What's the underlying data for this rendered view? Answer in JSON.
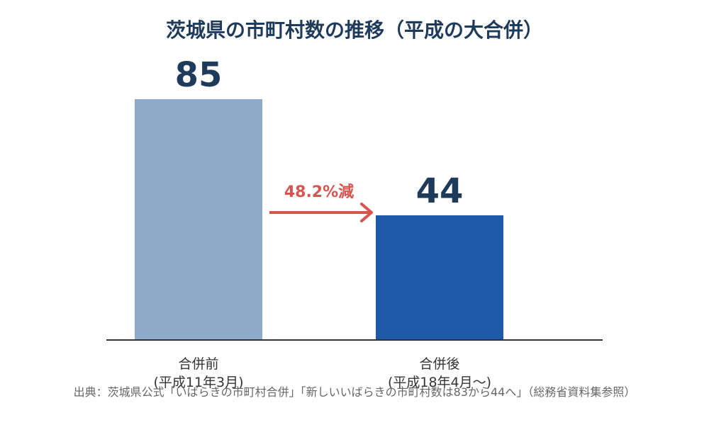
{
  "chart_data": {
    "type": "bar",
    "title": "茨城県の市町村数の推移（平成の大合併）",
    "categories": [
      "合併前\n(平成11年3月)",
      "合併後\n(平成18年4月〜)"
    ],
    "category_lines": [
      [
        "合併前",
        "(平成11年3月)"
      ],
      [
        "合併後",
        "(平成18年4月〜)"
      ]
    ],
    "values": [
      85,
      44
    ],
    "value_labels": [
      "85",
      "44"
    ],
    "bar_colors": [
      "#8eaac9",
      "#1f5aa8"
    ],
    "ylim": [
      0,
      100
    ],
    "grid": false,
    "annotation": {
      "text": "48.2%減",
      "color": "#d9534f",
      "from_category": 0,
      "to_category": 1
    },
    "source": "出典：茨城県公式「いばらきの市町村合併」「新しいいばらきの市町村数は83から44へ」（総務省資料集参照）"
  },
  "colors": {
    "title": "#1f3b5c",
    "value_label": "#1f3b5c",
    "category_label": "#333333",
    "axis": "#333333",
    "source": "#666666",
    "background": "#ffffff"
  }
}
